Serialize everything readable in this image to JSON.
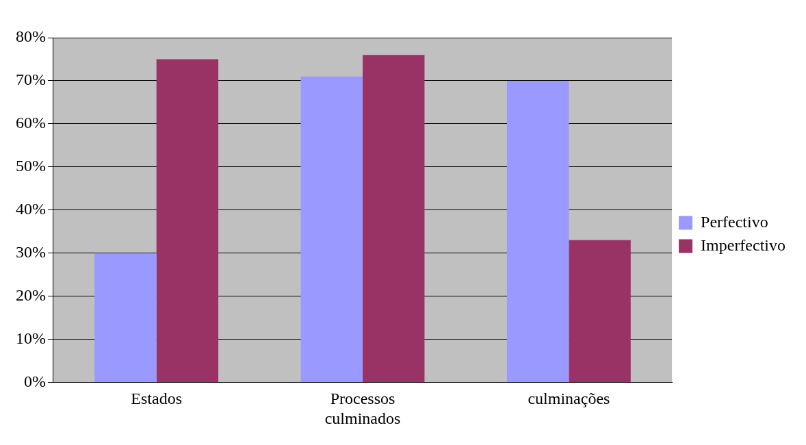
{
  "chart_data": {
    "type": "bar",
    "categories": [
      [
        "Estados"
      ],
      [
        "Processos",
        "culminados"
      ],
      [
        "culminações"
      ]
    ],
    "series": [
      {
        "name": "Perfectivo",
        "color": "#9999ff",
        "values": [
          30,
          71,
          70
        ]
      },
      {
        "name": "Imperfectivo",
        "color": "#993366",
        "values": [
          75,
          76,
          33
        ]
      }
    ],
    "ylim": [
      0,
      80
    ],
    "yticks": [
      {
        "value": 0,
        "label": "0%"
      },
      {
        "value": 10,
        "label": "10%"
      },
      {
        "value": 20,
        "label": "20%"
      },
      {
        "value": 30,
        "label": "30%"
      },
      {
        "value": 40,
        "label": "40%"
      },
      {
        "value": 50,
        "label": "50%"
      },
      {
        "value": 60,
        "label": "60%"
      },
      {
        "value": 70,
        "label": "70%"
      },
      {
        "value": 80,
        "label": "80%"
      }
    ],
    "grid": "y",
    "legend": "right"
  }
}
